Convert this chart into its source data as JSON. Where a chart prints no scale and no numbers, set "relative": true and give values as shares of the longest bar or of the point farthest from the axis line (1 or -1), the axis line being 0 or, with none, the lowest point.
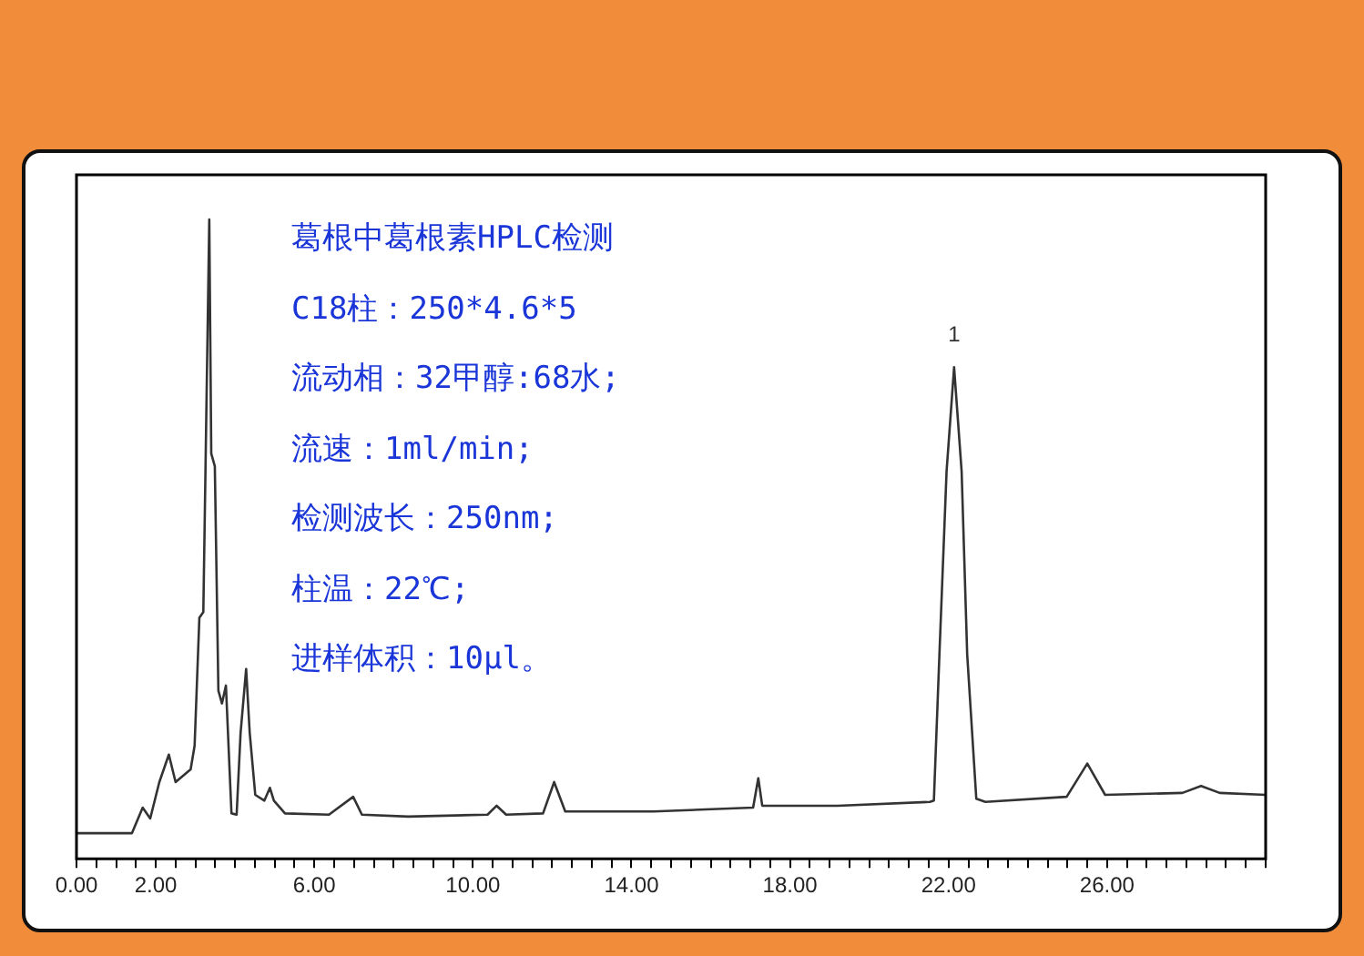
{
  "chart_data": {
    "type": "line",
    "relative": true,
    "grid": false,
    "legend": false,
    "marker": "none",
    "line_style": "solid",
    "annotations": [
      "葛根中葛根素HPLC检测",
      "C18柱：250*4.6*5",
      "流动相：32甲醇:68水;",
      "流速：1ml/min;",
      "检测波长：250nm;",
      "柱温：22℃;",
      "进样体积：10μl。",
      {
        "text": "1",
        "x": 22.14,
        "y": 0.769
      }
    ],
    "xlim": [
      0,
      30
    ],
    "xticks": [
      {
        "value": 0,
        "label": "0.00"
      },
      {
        "value": 0.5,
        "label": null
      },
      {
        "value": 1,
        "label": null
      },
      {
        "value": 1.5,
        "label": null
      },
      {
        "value": 2,
        "label": "2.00"
      },
      {
        "value": 2.5,
        "label": null
      },
      {
        "value": 3,
        "label": null
      },
      {
        "value": 3.5,
        "label": null
      },
      {
        "value": 4,
        "label": null
      },
      {
        "value": 4.5,
        "label": null
      },
      {
        "value": 5,
        "label": null
      },
      {
        "value": 5.5,
        "label": null
      },
      {
        "value": 6,
        "label": "6.00"
      },
      {
        "value": 6.5,
        "label": null
      },
      {
        "value": 7,
        "label": null
      },
      {
        "value": 7.5,
        "label": null
      },
      {
        "value": 8,
        "label": null
      },
      {
        "value": 8.5,
        "label": null
      },
      {
        "value": 9,
        "label": null
      },
      {
        "value": 9.5,
        "label": null
      },
      {
        "value": 10,
        "label": "10.00"
      },
      {
        "value": 10.5,
        "label": null
      },
      {
        "value": 11,
        "label": null
      },
      {
        "value": 11.5,
        "label": null
      },
      {
        "value": 12,
        "label": null
      },
      {
        "value": 12.5,
        "label": null
      },
      {
        "value": 13,
        "label": null
      },
      {
        "value": 13.5,
        "label": null
      },
      {
        "value": 14,
        "label": "14.00"
      },
      {
        "value": 14.5,
        "label": null
      },
      {
        "value": 15,
        "label": null
      },
      {
        "value": 15.5,
        "label": null
      },
      {
        "value": 16,
        "label": null
      },
      {
        "value": 16.5,
        "label": null
      },
      {
        "value": 17,
        "label": null
      },
      {
        "value": 17.5,
        "label": null
      },
      {
        "value": 18,
        "label": "18.00"
      },
      {
        "value": 18.5,
        "label": null
      },
      {
        "value": 19,
        "label": null
      },
      {
        "value": 19.5,
        "label": null
      },
      {
        "value": 20,
        "label": null
      },
      {
        "value": 20.5,
        "label": null
      },
      {
        "value": 21,
        "label": null
      },
      {
        "value": 21.5,
        "label": null
      },
      {
        "value": 22,
        "label": "22.00"
      },
      {
        "value": 22.5,
        "label": null
      },
      {
        "value": 23,
        "label": null
      },
      {
        "value": 23.5,
        "label": null
      },
      {
        "value": 24,
        "label": null
      },
      {
        "value": 24.5,
        "label": null
      },
      {
        "value": 25,
        "label": null
      },
      {
        "value": 25.5,
        "label": null
      },
      {
        "value": 26,
        "label": "26.00"
      },
      {
        "value": 26.5,
        "label": null
      },
      {
        "value": 27,
        "label": null
      },
      {
        "value": 27.5,
        "label": null
      },
      {
        "value": 28,
        "label": null
      },
      {
        "value": 28.5,
        "label": null
      },
      {
        "value": 29,
        "label": null
      },
      {
        "value": 29.5,
        "label": null
      },
      {
        "value": 30,
        "label": null
      }
    ],
    "x": [
      0,
      1.4,
      1.67,
      1.86,
      2.09,
      2.33,
      2.5,
      2.88,
      2.98,
      3.1,
      3.2,
      3.35,
      3.4,
      3.49,
      3.58,
      3.67,
      3.77,
      3.91,
      4.04,
      4.14,
      4.28,
      4.37,
      4.51,
      4.74,
      4.88,
      4.98,
      5.26,
      6.37,
      6.98,
      7.2,
      8.37,
      10.37,
      10.6,
      10.84,
      11.77,
      12.05,
      12.33,
      14.56,
      17.07,
      17.2,
      17.3,
      19.2,
      21.53,
      21.63,
      21.77,
      21.95,
      22.14,
      22.33,
      22.47,
      22.7,
      22.93,
      24.98,
      25.5,
      25.95,
      27.9,
      28.37,
      28.84,
      30
    ],
    "series": [
      {
        "color": "#333333",
        "values": [
          0.04,
          0.04,
          0.08,
          0.063,
          0.12,
          0.163,
          0.12,
          0.14,
          0.177,
          0.377,
          0.386,
          1.0,
          0.634,
          0.614,
          0.263,
          0.243,
          0.271,
          0.071,
          0.069,
          0.197,
          0.297,
          0.197,
          0.1,
          0.091,
          0.111,
          0.091,
          0.071,
          0.069,
          0.097,
          0.069,
          0.066,
          0.069,
          0.083,
          0.069,
          0.071,
          0.12,
          0.074,
          0.074,
          0.08,
          0.126,
          0.083,
          0.083,
          0.089,
          0.091,
          0.32,
          0.606,
          0.769,
          0.606,
          0.32,
          0.094,
          0.089,
          0.097,
          0.149,
          0.1,
          0.103,
          0.114,
          0.103,
          0.1
        ]
      }
    ]
  }
}
